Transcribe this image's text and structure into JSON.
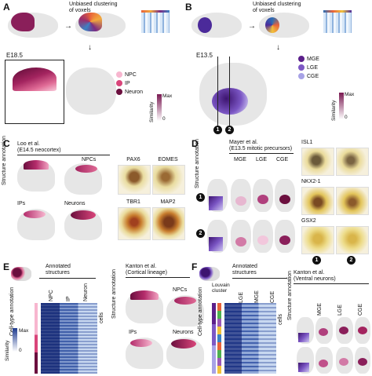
{
  "panels": {
    "A": {
      "letter": "A",
      "clustering_label": "Unbiased clustering\nof voxels",
      "stage": "E18.5",
      "legend": [
        {
          "label": "NPC",
          "color": "#f7b6cf"
        },
        {
          "label": "IP",
          "color": "#d9457a"
        },
        {
          "label": "Neuron",
          "color": "#6b0f3e"
        }
      ],
      "scale_title": "Similarity",
      "scale_max": "Max",
      "scale_min": "0"
    },
    "B": {
      "letter": "B",
      "clustering_label": "Unbiased clustering\nof voxels",
      "stage": "E13.5",
      "legend": [
        {
          "label": "MGE",
          "color": "#5b1f8a"
        },
        {
          "label": "LGE",
          "color": "#7d58c4"
        },
        {
          "label": "CGE",
          "color": "#a7a2e6"
        }
      ],
      "scale_title": "Similarity",
      "scale_max": "Max",
      "scale_min": "0",
      "markers": [
        "1",
        "2"
      ]
    },
    "C": {
      "letter": "C",
      "reference": "Loo et al.\n(E14.5 neocortex)",
      "row_label": "Structure\nannotation",
      "npcs": "NPCs",
      "ips": "IPs",
      "neurons": "Neurons",
      "ish": [
        "PAX6",
        "EOMES",
        "TBR1",
        "MAP2"
      ]
    },
    "D": {
      "letter": "D",
      "reference": "Mayer et al.\n(E13.5 mitotic precursors)",
      "row_label": "Structure\nannotation",
      "cols": [
        "MGE",
        "LGE",
        "CGE"
      ],
      "markers": [
        "1",
        "2"
      ],
      "ish": [
        "ISL1",
        "NKX2-1",
        "GSX2"
      ]
    },
    "E": {
      "letter": "E",
      "annotated": "Annotated\nstructures",
      "cols": [
        "NPC",
        "IP",
        "Neuron"
      ],
      "row_label": "Cell-type\nannotation",
      "cells": "cells",
      "scale_title": "Similarity",
      "scale_max": "Max",
      "scale_min": "0",
      "reference": "Kanton et al.\n(Cortical lineage)",
      "row_label2": "Structure\nannotation",
      "npcs": "NPCs",
      "ips": "IPs",
      "neurons": "Neurons"
    },
    "F": {
      "letter": "F",
      "annotated": "Annotated\nstructures",
      "louvain": "Louvain\ncluster",
      "cols": [
        "LGE",
        "MGE",
        "CGE"
      ],
      "row_label": "Cell-type\nannotation",
      "cells": "cells",
      "reference": "Kanton et al.\n(Ventral neurons)",
      "row_label2": "Structure\nannotation",
      "ref_cols": [
        "MGE",
        "LGE",
        "CGE"
      ]
    }
  }
}
